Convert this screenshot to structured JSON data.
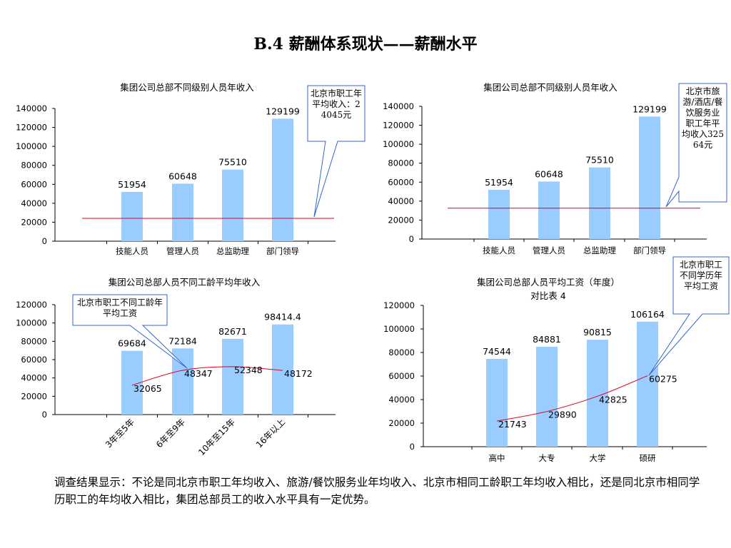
{
  "title": "B.4 薪酬体系现状——薪酬水平",
  "summary": "调查结果显示：不论是同北京市职工年均收入、旅游/餐饮服务业年均收入、北京市相同工龄职工年均收入相比，还是同北京市相同学历职工的年均收入相比，集团总部员工的收入水平具有一定优势。",
  "colors": {
    "bar": "#99ccff",
    "line": "#e0001b",
    "callout_border": "#3366cc"
  },
  "chart_data": [
    {
      "type": "bar",
      "title": "集团公司总部不同级别人员年收入",
      "categories": [
        "技能人员",
        "管理人员",
        "总监助理",
        "部门领导"
      ],
      "values": [
        51954,
        60648,
        75510,
        129199
      ],
      "value_labels": [
        "51954",
        "60648",
        "75510",
        "129199"
      ],
      "ylim": [
        0,
        140000
      ],
      "yticks": [
        "0",
        "20000",
        "40000",
        "60000",
        "80000",
        "100000",
        "120000",
        "140000"
      ],
      "reference_value": 24045,
      "callout": "北京市职工年平均收入：24045元",
      "grid": false,
      "legend": "none"
    },
    {
      "type": "bar",
      "title": "集团公司总部不同级别人员年收入",
      "categories": [
        "技能人员",
        "管理人员",
        "总监助理",
        "部门领导"
      ],
      "values": [
        51954,
        60648,
        75510,
        129199
      ],
      "value_labels": [
        "51954",
        "60648",
        "75510",
        "129199"
      ],
      "ylim": [
        0,
        140000
      ],
      "yticks": [
        "0",
        "20000",
        "40000",
        "60000",
        "80000",
        "100000",
        "120000",
        "140000"
      ],
      "reference_value": 32564,
      "callout": "北京市旅游/酒店/餐饮服务业职工年平均收入32564元",
      "grid": false,
      "legend": "none"
    },
    {
      "type": "bar",
      "title": "集团公司总部人员不同工龄平均年收入",
      "categories": [
        "3年至5年",
        "6年至9年",
        "10年至15年",
        "16年以上"
      ],
      "values": [
        69684,
        72184,
        82671,
        98414.4
      ],
      "value_labels": [
        "69684",
        "72184",
        "82671",
        "98414.4"
      ],
      "line_values": [
        32065,
        48347,
        52348,
        48172
      ],
      "line_labels": [
        "32065",
        "48347",
        "52348",
        "48172"
      ],
      "ylim": [
        0,
        120000
      ],
      "yticks": [
        "0",
        "20000",
        "40000",
        "60000",
        "80000",
        "100000",
        "120000"
      ],
      "callout": "北京市职工不同工龄年平均工资",
      "grid": false,
      "legend": "none"
    },
    {
      "type": "bar",
      "title": "集团公司总部人员平均工资（年度）",
      "subtitle": "对比表 4",
      "categories": [
        "高中",
        "大专",
        "大学",
        "硕研"
      ],
      "values": [
        74544,
        84881,
        90815,
        106164
      ],
      "value_labels": [
        "74544",
        "84881",
        "90815",
        "106164"
      ],
      "line_values": [
        21743,
        29890,
        42825,
        60275
      ],
      "line_labels": [
        "21743",
        "29890",
        "42825",
        "60275"
      ],
      "ylim": [
        0,
        120000
      ],
      "yticks": [
        "0",
        "20000",
        "40000",
        "60000",
        "80000",
        "100000",
        "120000"
      ],
      "callout": "北京市职工不同学历年平均工资",
      "grid": false,
      "legend": "none"
    }
  ]
}
